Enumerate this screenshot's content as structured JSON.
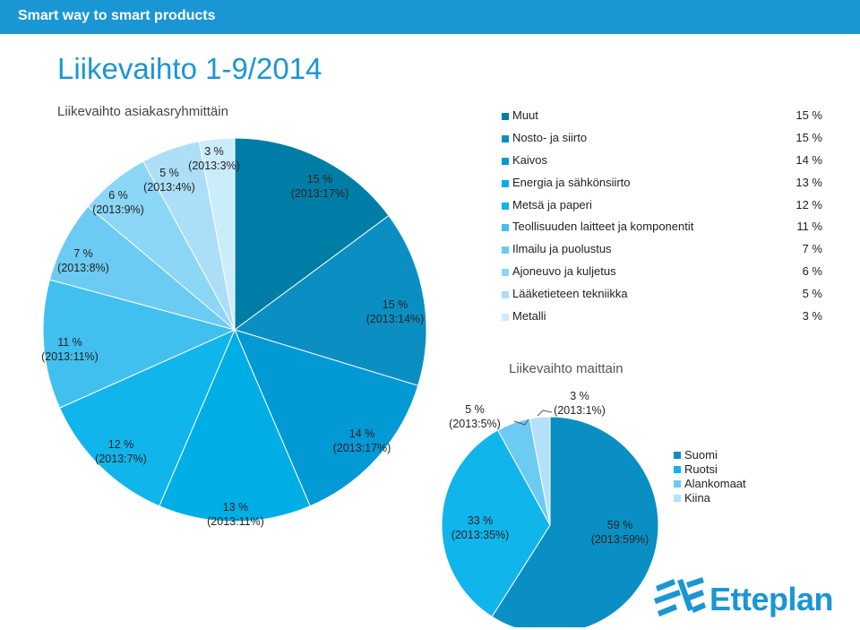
{
  "header": {
    "tagline": "Smart way to smart products"
  },
  "page": {
    "title": "Liikevaihto 1-9/2014"
  },
  "chart_data": [
    {
      "type": "pie",
      "title": "Liikevaihto asiakasryhmittäin",
      "slices": [
        {
          "name": "Muut",
          "value": 15,
          "label": "15 %",
          "prev": "(2013:17%)",
          "color": "#007da6"
        },
        {
          "name": "Nosto- ja siirto",
          "value": 15,
          "label": "15 %",
          "prev": "(2013:14%)",
          "color": "#0b8fc3"
        },
        {
          "name": "Kaivos",
          "value": 14,
          "label": "14 %",
          "prev": "(2013:17%)",
          "color": "#0399d4"
        },
        {
          "name": "Energia ja sähkönsiirto",
          "value": 13,
          "label": "13 %",
          "prev": "(2013:11%)",
          "color": "#00aee6"
        },
        {
          "name": "Metsä ja paperi",
          "value": 12,
          "label": "12 %",
          "prev": "(2013:7%)",
          "color": "#10b5ec"
        },
        {
          "name": "Teollisuuden laitteet ja komponentit",
          "value": 11,
          "label": "11 %",
          "prev": "(2013:11%)",
          "color": "#41c0f0"
        },
        {
          "name": "Ilmailu ja puolustus",
          "value": 7,
          "label": "7 %",
          "prev": "(2013:8%)",
          "color": "#6ccbf3"
        },
        {
          "name": "Ajoneuvo ja kuljetus",
          "value": 6,
          "label": "6 %",
          "prev": "(2013:9%)",
          "color": "#8cd6f6"
        },
        {
          "name": "Lääketieteen tekniikka",
          "value": 5,
          "label": "5 %",
          "prev": "(2013:4%)",
          "color": "#acdff7"
        },
        {
          "name": "Metalli",
          "value": 3,
          "label": "3 %",
          "prev": "(2013:3%)",
          "color": "#cbecfb"
        }
      ]
    },
    {
      "type": "pie",
      "title": "Liikevaihto maittain",
      "slices": [
        {
          "name": "Suomi",
          "value": 59,
          "label": "59 %",
          "prev": "(2013:59%)",
          "color": "#0a8fc4"
        },
        {
          "name": "Ruotsi",
          "value": 33,
          "label": "33 %",
          "prev": "(2013:35%)",
          "color": "#10b5ec"
        },
        {
          "name": "Alankomaat",
          "value": 5,
          "label": "5 %",
          "prev": "(2013:5%)",
          "color": "#6ccbf3"
        },
        {
          "name": "Kiina",
          "value": 3,
          "label": "3 %",
          "prev": "(2013:1%)",
          "color": "#b3e2f8"
        }
      ]
    }
  ],
  "logo": {
    "name": "Etteplan",
    "color": "#1a96d4"
  }
}
